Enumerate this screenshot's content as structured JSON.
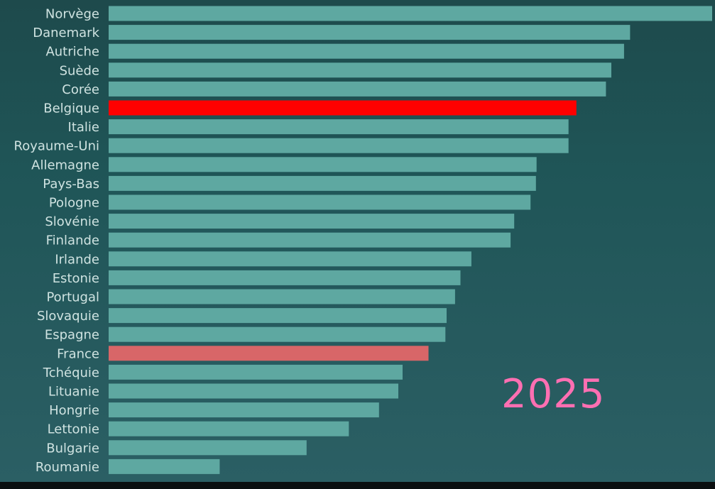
{
  "chart_data": {
    "type": "bar",
    "orientation": "horizontal",
    "categories": [
      "Norvège",
      "Danemark",
      "Autriche",
      "Suède",
      "Corée",
      "Belgique",
      "Italie",
      "Royaume-Uni",
      "Allemagne",
      "Pays-Bas",
      "Pologne",
      "Slovénie",
      "Finlande",
      "Irlande",
      "Estonie",
      "Portugal",
      "Slovaquie",
      "Espagne",
      "France",
      "Tchéquie",
      "Lituanie",
      "Hongrie",
      "Lettonie",
      "Bulgarie",
      "Roumanie"
    ],
    "values": [
      100,
      86.4,
      85.4,
      83.3,
      82.4,
      77.5,
      76.2,
      76.2,
      70.9,
      70.8,
      69.9,
      67.2,
      66.6,
      60.1,
      58.3,
      57.4,
      56.0,
      55.8,
      53.0,
      48.7,
      48.0,
      44.8,
      39.8,
      32.8,
      18.4
    ],
    "colors": {
      "default": "#5ea8a1",
      "highlights": {
        "Belgique": "#ff0000",
        "France": "#d86668"
      }
    },
    "label_colors": {
      "default": "#cfe3e1",
      "France": "#e8767a"
    },
    "annotation": "2025",
    "annotation_color": "#ff6fb2",
    "grid": false,
    "legend": "none",
    "xlim": [
      0,
      100
    ]
  }
}
